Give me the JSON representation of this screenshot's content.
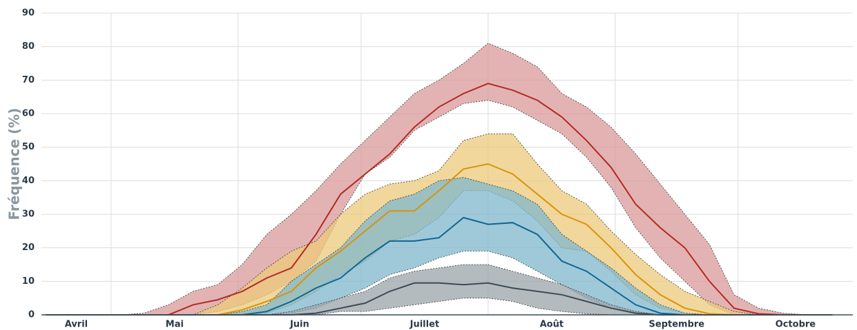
{
  "chart_data": {
    "type": "band-line",
    "y_label": "Fréquence (%)",
    "x": [
      14,
      20,
      26,
      32,
      38,
      44,
      50,
      56,
      62,
      68,
      74,
      80,
      86,
      92,
      98,
      104,
      110,
      116,
      122,
      128,
      134,
      140,
      146,
      152,
      158,
      164,
      170,
      176,
      182,
      188,
      194,
      200,
      206
    ],
    "xlim": [
      13,
      211
    ],
    "xticks": [
      {
        "value": 21.5,
        "label": "Avril"
      },
      {
        "value": 45.5,
        "label": "Mai"
      },
      {
        "value": 76,
        "label": "Juin"
      },
      {
        "value": 106.5,
        "label": "Juillet"
      },
      {
        "value": 137.5,
        "label": "Août"
      },
      {
        "value": 168,
        "label": "Septembre"
      },
      {
        "value": 197,
        "label": "Octobre"
      }
    ],
    "xgrid": [
      30,
      61,
      91,
      122,
      153,
      183
    ],
    "ylim": [
      0,
      90
    ],
    "yticks": [
      0,
      10,
      20,
      30,
      40,
      50,
      60,
      70,
      80,
      90
    ],
    "grid": true,
    "series": [
      {
        "color": "#b22a22",
        "fill": "#d99a9a",
        "values": [
          0,
          0,
          0,
          0,
          0,
          0,
          3,
          4.5,
          7,
          11,
          14,
          24,
          36,
          42,
          48,
          56,
          62,
          66,
          69,
          67,
          64,
          59,
          52,
          44,
          33,
          26,
          20,
          10,
          2,
          0.3,
          0,
          0,
          0
        ],
        "high": [
          0,
          0,
          0,
          0,
          0.5,
          3,
          7,
          9,
          15,
          24,
          30,
          37,
          45,
          52,
          59,
          66,
          70,
          75,
          81,
          78,
          74,
          66,
          62,
          56,
          48,
          39,
          30,
          21,
          6,
          2,
          0.5,
          0,
          0
        ],
        "low": [
          0,
          0,
          0,
          0,
          0,
          0,
          0,
          1,
          3,
          6,
          10,
          16,
          30,
          42,
          47,
          55,
          59,
          63,
          64,
          62,
          58,
          54,
          47,
          38,
          26,
          17,
          10,
          3,
          0,
          0,
          0,
          0,
          0
        ]
      },
      {
        "color": "#d9930a",
        "fill": "#ecc97a",
        "values": [
          0,
          0,
          0,
          0,
          0,
          0,
          0,
          0,
          1.5,
          4,
          7,
          14,
          19,
          25,
          31,
          31,
          37,
          43.5,
          45,
          42,
          36,
          30,
          27,
          20,
          12,
          6,
          2,
          0.3,
          0,
          0,
          0,
          0,
          0
        ],
        "high": [
          0,
          0,
          0,
          0,
          0,
          0,
          0,
          3,
          8,
          14,
          19,
          22,
          30,
          36,
          39,
          40,
          43,
          52,
          54,
          54,
          45,
          37,
          33,
          25,
          18,
          12,
          7,
          4,
          1,
          0,
          0,
          0,
          0
        ],
        "low": [
          0,
          0,
          0,
          0,
          0,
          0,
          0,
          0,
          0,
          0.5,
          3,
          7,
          12,
          16,
          22,
          24,
          29,
          37,
          37,
          34,
          28,
          20,
          19,
          13,
          6,
          2,
          0.5,
          0,
          0,
          0,
          0,
          0,
          0
        ]
      },
      {
        "color": "#0f6690",
        "fill": "#7fb7cc",
        "values": [
          0,
          0,
          0,
          0,
          0,
          0,
          0,
          0,
          0,
          1,
          4,
          8,
          11,
          17,
          22,
          22,
          23,
          29,
          27,
          27.5,
          24,
          16,
          13,
          8,
          3,
          0.5,
          0,
          0,
          0,
          0,
          0,
          0,
          0
        ],
        "high": [
          0,
          0,
          0,
          0,
          0,
          0,
          0,
          0,
          1,
          3,
          10,
          15,
          20,
          28,
          34,
          36,
          40,
          41,
          39,
          37,
          33,
          24,
          19,
          14,
          8,
          3,
          0.5,
          0,
          0,
          0,
          0,
          0,
          0
        ],
        "low": [
          0,
          0,
          0,
          0,
          0,
          0,
          0,
          0,
          0,
          0,
          0.5,
          2,
          5,
          8,
          12,
          14,
          17,
          19,
          19,
          17,
          13,
          9,
          5,
          2,
          0.3,
          0,
          0,
          0,
          0,
          0,
          0,
          0,
          0
        ]
      },
      {
        "color": "#3c4a55",
        "fill": "#9aa4aa",
        "values": [
          0,
          0,
          0,
          0,
          0,
          0,
          0,
          0,
          0,
          0,
          0,
          0.5,
          2,
          3.5,
          7,
          9.5,
          9.5,
          9,
          9.5,
          8,
          7,
          6,
          4,
          2,
          0.5,
          0,
          0,
          0,
          0,
          0,
          0,
          0,
          0
        ],
        "high": [
          0,
          0,
          0,
          0,
          0,
          0,
          0,
          0,
          0,
          0,
          1,
          3,
          5,
          7,
          11,
          13,
          14,
          15,
          15,
          13,
          11,
          9,
          6,
          3,
          1,
          0,
          0,
          0,
          0,
          0,
          0,
          0,
          0
        ],
        "low": [
          0,
          0,
          0,
          0,
          0,
          0,
          0,
          0,
          0,
          0,
          0,
          0,
          1,
          1,
          2,
          3,
          4,
          5,
          5,
          4,
          2,
          1,
          0.3,
          0,
          0,
          0,
          0,
          0,
          0,
          0,
          0,
          0,
          0
        ]
      }
    ]
  }
}
